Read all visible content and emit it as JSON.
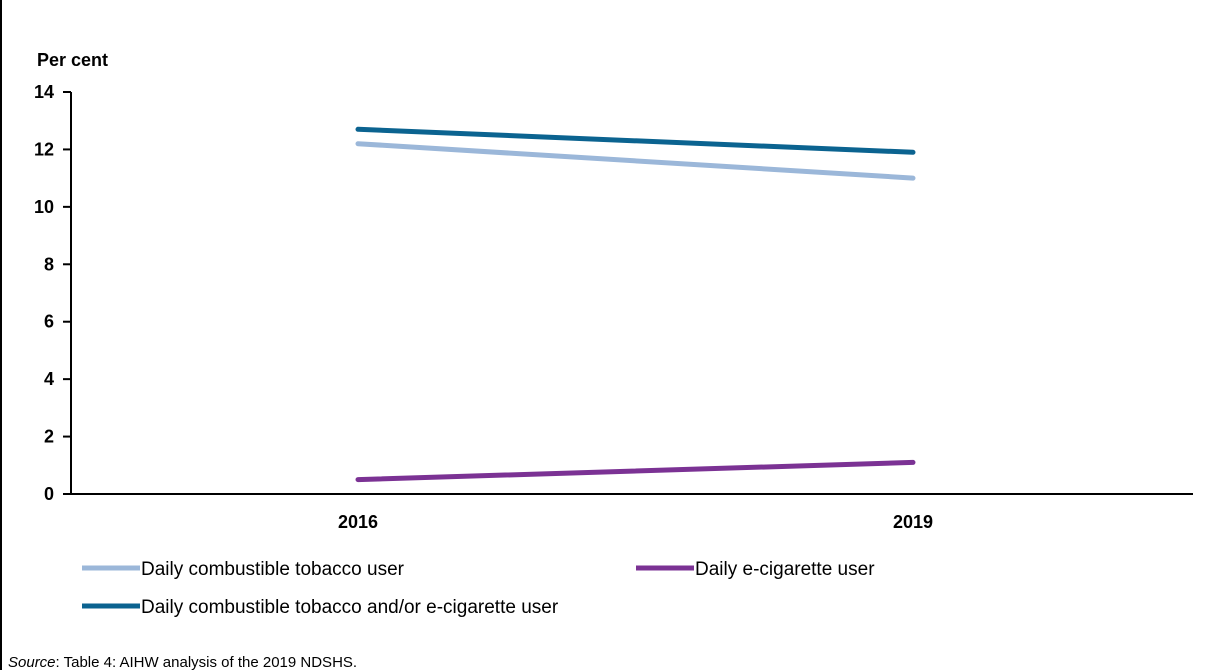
{
  "chart_data": {
    "type": "line",
    "title": "",
    "ylabel": "Per cent",
    "xlabel": "",
    "categories": [
      "2016",
      "2019"
    ],
    "ylim": [
      0,
      14
    ],
    "yticks": [
      "0",
      "2",
      "4",
      "6",
      "8",
      "10",
      "12",
      "14"
    ],
    "grid": false,
    "legend_position": "bottom",
    "series": [
      {
        "name": "Daily combustible tobacco user",
        "values": [
          12.2,
          11.0
        ],
        "color": "#9bb7d9"
      },
      {
        "name": "Daily e-cigarette user",
        "values": [
          0.5,
          1.1
        ],
        "color": "#7b3294"
      },
      {
        "name": "Daily combustible tobacco and/or e-cigarette user",
        "values": [
          12.7,
          11.9
        ],
        "color": "#0b6390"
      }
    ]
  },
  "source": {
    "prefix": "Source",
    "text": ": Table 4: AIHW analysis of the 2019 NDSHS."
  }
}
